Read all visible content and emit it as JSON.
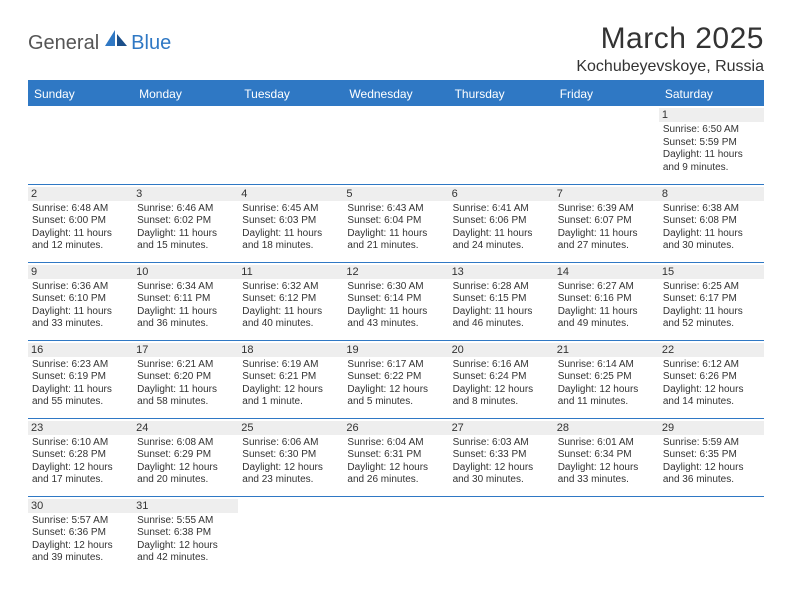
{
  "brand": {
    "part1": "General",
    "part2": "Blue"
  },
  "title": "March 2025",
  "location": "Kochubeyevskoye, Russia",
  "colors": {
    "accent": "#2f78c4",
    "dayHeaderBg": "#eeeeee",
    "text": "#333333",
    "bg": "#ffffff"
  },
  "weekdays": [
    "Sunday",
    "Monday",
    "Tuesday",
    "Wednesday",
    "Thursday",
    "Friday",
    "Saturday"
  ],
  "weeks": [
    [
      null,
      null,
      null,
      null,
      null,
      null,
      {
        "n": "1",
        "sr": "Sunrise: 6:50 AM",
        "ss": "Sunset: 5:59 PM",
        "dl": "Daylight: 11 hours and 9 minutes."
      }
    ],
    [
      {
        "n": "2",
        "sr": "Sunrise: 6:48 AM",
        "ss": "Sunset: 6:00 PM",
        "dl": "Daylight: 11 hours and 12 minutes."
      },
      {
        "n": "3",
        "sr": "Sunrise: 6:46 AM",
        "ss": "Sunset: 6:02 PM",
        "dl": "Daylight: 11 hours and 15 minutes."
      },
      {
        "n": "4",
        "sr": "Sunrise: 6:45 AM",
        "ss": "Sunset: 6:03 PM",
        "dl": "Daylight: 11 hours and 18 minutes."
      },
      {
        "n": "5",
        "sr": "Sunrise: 6:43 AM",
        "ss": "Sunset: 6:04 PM",
        "dl": "Daylight: 11 hours and 21 minutes."
      },
      {
        "n": "6",
        "sr": "Sunrise: 6:41 AM",
        "ss": "Sunset: 6:06 PM",
        "dl": "Daylight: 11 hours and 24 minutes."
      },
      {
        "n": "7",
        "sr": "Sunrise: 6:39 AM",
        "ss": "Sunset: 6:07 PM",
        "dl": "Daylight: 11 hours and 27 minutes."
      },
      {
        "n": "8",
        "sr": "Sunrise: 6:38 AM",
        "ss": "Sunset: 6:08 PM",
        "dl": "Daylight: 11 hours and 30 minutes."
      }
    ],
    [
      {
        "n": "9",
        "sr": "Sunrise: 6:36 AM",
        "ss": "Sunset: 6:10 PM",
        "dl": "Daylight: 11 hours and 33 minutes."
      },
      {
        "n": "10",
        "sr": "Sunrise: 6:34 AM",
        "ss": "Sunset: 6:11 PM",
        "dl": "Daylight: 11 hours and 36 minutes."
      },
      {
        "n": "11",
        "sr": "Sunrise: 6:32 AM",
        "ss": "Sunset: 6:12 PM",
        "dl": "Daylight: 11 hours and 40 minutes."
      },
      {
        "n": "12",
        "sr": "Sunrise: 6:30 AM",
        "ss": "Sunset: 6:14 PM",
        "dl": "Daylight: 11 hours and 43 minutes."
      },
      {
        "n": "13",
        "sr": "Sunrise: 6:28 AM",
        "ss": "Sunset: 6:15 PM",
        "dl": "Daylight: 11 hours and 46 minutes."
      },
      {
        "n": "14",
        "sr": "Sunrise: 6:27 AM",
        "ss": "Sunset: 6:16 PM",
        "dl": "Daylight: 11 hours and 49 minutes."
      },
      {
        "n": "15",
        "sr": "Sunrise: 6:25 AM",
        "ss": "Sunset: 6:17 PM",
        "dl": "Daylight: 11 hours and 52 minutes."
      }
    ],
    [
      {
        "n": "16",
        "sr": "Sunrise: 6:23 AM",
        "ss": "Sunset: 6:19 PM",
        "dl": "Daylight: 11 hours and 55 minutes."
      },
      {
        "n": "17",
        "sr": "Sunrise: 6:21 AM",
        "ss": "Sunset: 6:20 PM",
        "dl": "Daylight: 11 hours and 58 minutes."
      },
      {
        "n": "18",
        "sr": "Sunrise: 6:19 AM",
        "ss": "Sunset: 6:21 PM",
        "dl": "Daylight: 12 hours and 1 minute."
      },
      {
        "n": "19",
        "sr": "Sunrise: 6:17 AM",
        "ss": "Sunset: 6:22 PM",
        "dl": "Daylight: 12 hours and 5 minutes."
      },
      {
        "n": "20",
        "sr": "Sunrise: 6:16 AM",
        "ss": "Sunset: 6:24 PM",
        "dl": "Daylight: 12 hours and 8 minutes."
      },
      {
        "n": "21",
        "sr": "Sunrise: 6:14 AM",
        "ss": "Sunset: 6:25 PM",
        "dl": "Daylight: 12 hours and 11 minutes."
      },
      {
        "n": "22",
        "sr": "Sunrise: 6:12 AM",
        "ss": "Sunset: 6:26 PM",
        "dl": "Daylight: 12 hours and 14 minutes."
      }
    ],
    [
      {
        "n": "23",
        "sr": "Sunrise: 6:10 AM",
        "ss": "Sunset: 6:28 PM",
        "dl": "Daylight: 12 hours and 17 minutes."
      },
      {
        "n": "24",
        "sr": "Sunrise: 6:08 AM",
        "ss": "Sunset: 6:29 PM",
        "dl": "Daylight: 12 hours and 20 minutes."
      },
      {
        "n": "25",
        "sr": "Sunrise: 6:06 AM",
        "ss": "Sunset: 6:30 PM",
        "dl": "Daylight: 12 hours and 23 minutes."
      },
      {
        "n": "26",
        "sr": "Sunrise: 6:04 AM",
        "ss": "Sunset: 6:31 PM",
        "dl": "Daylight: 12 hours and 26 minutes."
      },
      {
        "n": "27",
        "sr": "Sunrise: 6:03 AM",
        "ss": "Sunset: 6:33 PM",
        "dl": "Daylight: 12 hours and 30 minutes."
      },
      {
        "n": "28",
        "sr": "Sunrise: 6:01 AM",
        "ss": "Sunset: 6:34 PM",
        "dl": "Daylight: 12 hours and 33 minutes."
      },
      {
        "n": "29",
        "sr": "Sunrise: 5:59 AM",
        "ss": "Sunset: 6:35 PM",
        "dl": "Daylight: 12 hours and 36 minutes."
      }
    ],
    [
      {
        "n": "30",
        "sr": "Sunrise: 5:57 AM",
        "ss": "Sunset: 6:36 PM",
        "dl": "Daylight: 12 hours and 39 minutes."
      },
      {
        "n": "31",
        "sr": "Sunrise: 5:55 AM",
        "ss": "Sunset: 6:38 PM",
        "dl": "Daylight: 12 hours and 42 minutes."
      },
      null,
      null,
      null,
      null,
      null
    ]
  ]
}
